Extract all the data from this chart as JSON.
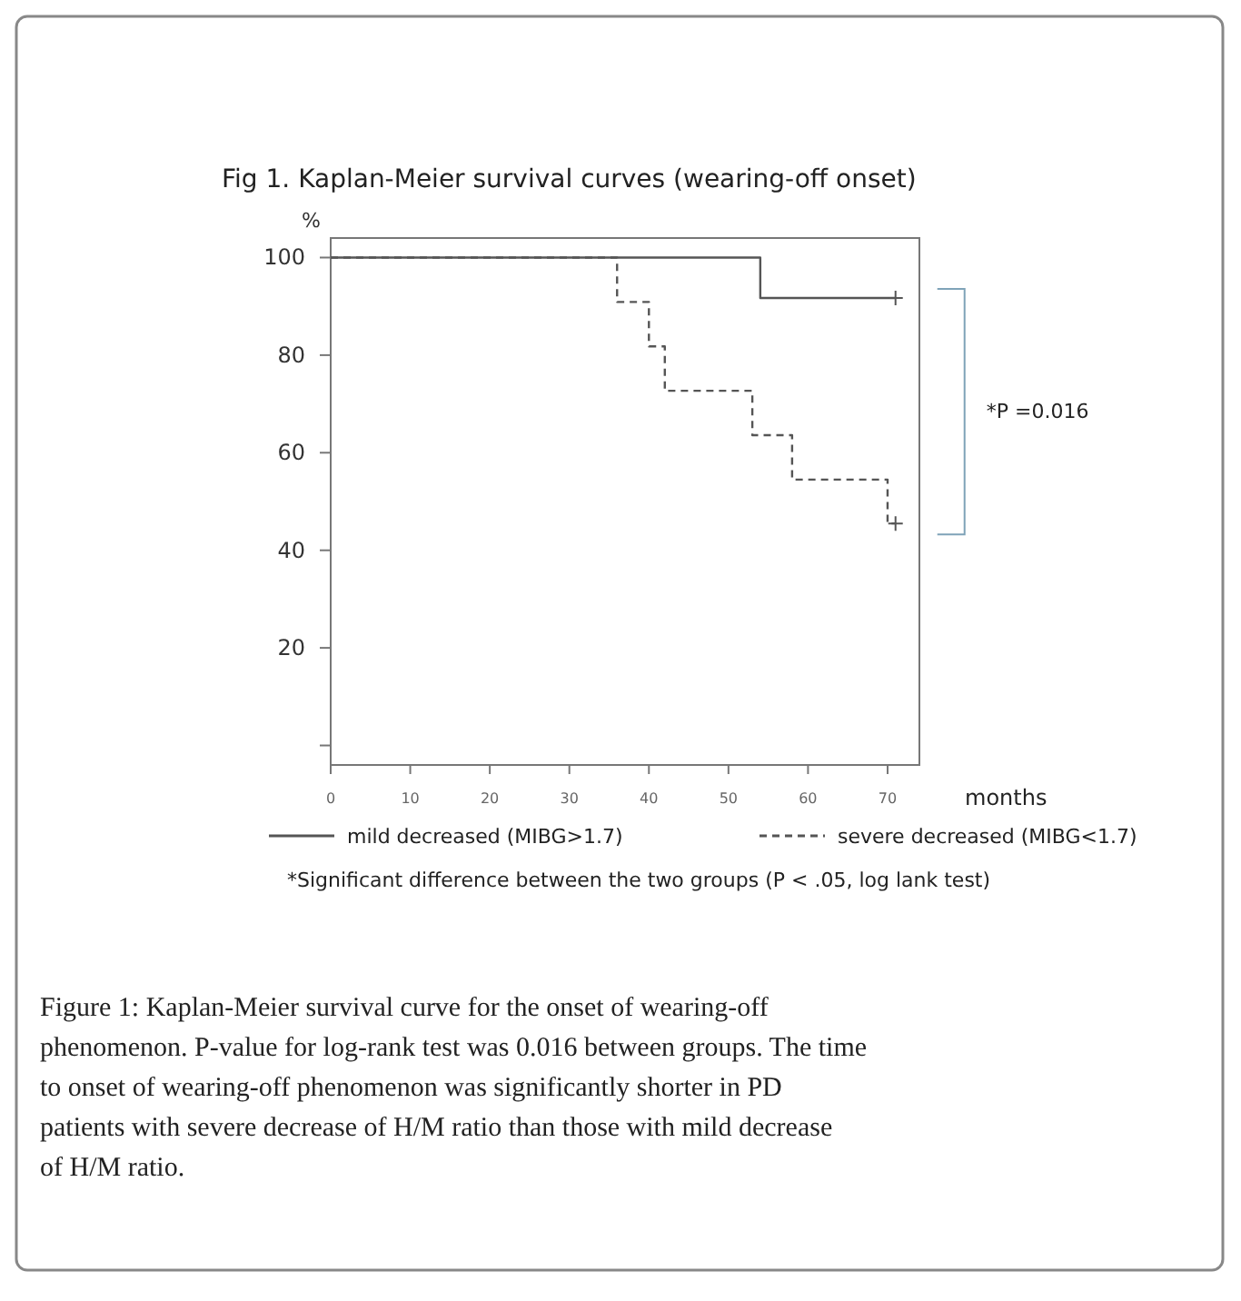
{
  "chart_data": {
    "type": "step",
    "title": "Fig 1. Kaplan-Meier survival curves (wearing-off onset)",
    "xlabel": "months",
    "ylabel": "%",
    "xlim": [
      0,
      74
    ],
    "xticks": [
      0,
      10,
      20,
      30,
      40,
      50,
      60,
      70
    ],
    "ylim": [
      -4,
      104
    ],
    "yticks": [
      {
        "value": 0,
        "label": null
      },
      20,
      40,
      60,
      80,
      100
    ],
    "series": [
      {
        "name": "mild decreased (MIBG>1.7)",
        "color": "#555555",
        "line_style": "solid",
        "x": [
          0,
          54,
          71
        ],
        "values": [
          100,
          91.7,
          91.7
        ]
      },
      {
        "name": "severe decreased (MIBG<1.7)",
        "color": "#555555",
        "line_style": "dashed",
        "x": [
          0,
          36,
          40,
          42,
          53,
          58,
          70,
          71
        ],
        "values": [
          100,
          90.9,
          81.8,
          72.7,
          63.6,
          54.5,
          45.5,
          45.5
        ]
      },
      {
        "type": "scatter",
        "color": "#555555",
        "marker": "cross",
        "x": [
          71,
          71
        ],
        "values": [
          91.7,
          45.5
        ]
      }
    ],
    "legend": "bottom",
    "grid": false,
    "annotations": [
      "*P =0.016",
      "*Significant difference between the two groups (P < .05, log lank test)",
      "Figure 1: Kaplan-Meier survival curve for the onset of wearing-off phenomenon. P-value for log-rank test was 0.016 between groups. The time to onset of wearing-off phenomenon was significantly shorter in PD patients with severe decrease of H/M ratio than those with mild decrease of H/M ratio."
    ]
  }
}
